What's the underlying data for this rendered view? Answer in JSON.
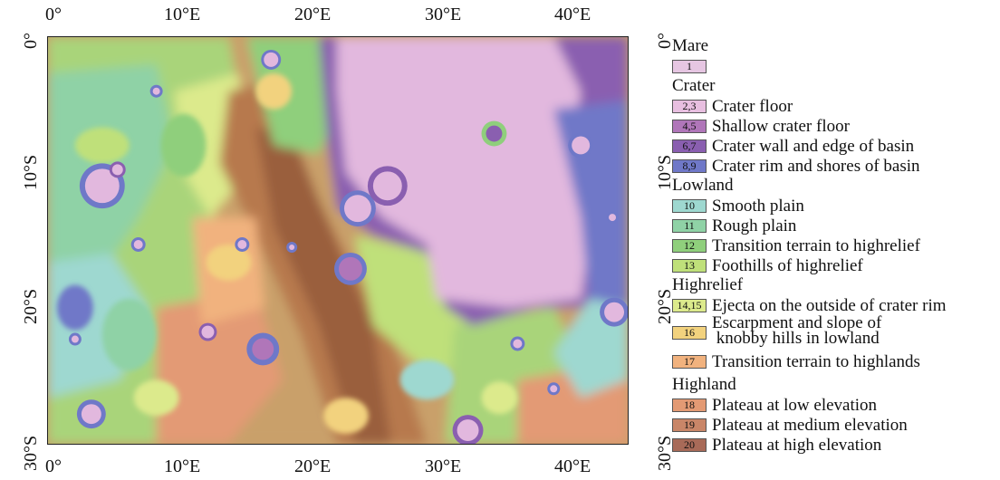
{
  "axes": {
    "top_ticks": [
      "0°",
      "10°E",
      "20°E",
      "30°E",
      "40°E"
    ],
    "bottom_ticks": [
      "0°",
      "10°E",
      "20°E",
      "30°E",
      "40°E"
    ],
    "left_ticks": [
      "0°",
      "10°S",
      "20°S",
      "30°S"
    ],
    "right_ticks": [
      "0°",
      "10°S",
      "20°S",
      "30°S"
    ],
    "lon_range": [
      0,
      44
    ],
    "lat_range": [
      0,
      -30
    ]
  },
  "legend": {
    "groups": [
      {
        "title": "Mare",
        "items": [
          {
            "code": "1",
            "label": "",
            "color": "#e6c6e2"
          }
        ]
      },
      {
        "title": "Crater",
        "items": [
          {
            "code": "2,3",
            "label": "Crater floor",
            "color": "#e8bfe0"
          },
          {
            "code": "4,5",
            "label": "Shallow crater floor",
            "color": "#b076b9"
          },
          {
            "code": "6,7",
            "label": "Crater wall and edge of basin",
            "color": "#8a5fb0"
          },
          {
            "code": "8,9",
            "label": "Crater rim and shores of basin",
            "color": "#6f78c8"
          }
        ]
      },
      {
        "title": "Lowland",
        "items": [
          {
            "code": "10",
            "label": "Smooth plain",
            "color": "#9ed8d0"
          },
          {
            "code": "11",
            "label": "Rough plain",
            "color": "#8fd2a6"
          },
          {
            "code": "12",
            "label": "Transition terrain to highrelief",
            "color": "#8fcf7c"
          },
          {
            "code": "13",
            "label": "Foothills of highrelief",
            "color": "#bfe07a"
          }
        ]
      },
      {
        "title": "Highrelief",
        "items": [
          {
            "code": "14,15",
            "label": "Ejecta on the outside of crater rim",
            "color": "#dcea8c"
          },
          {
            "code": "16",
            "label": "Escarpment and slope of\n knobby hills in lowland",
            "color": "#f2d27e"
          },
          {
            "code": "17",
            "label": "Transition terrain to highlands",
            "color": "#f1b27e"
          }
        ]
      },
      {
        "title": "Highland",
        "items": [
          {
            "code": "18",
            "label": "Plateau at low elevation",
            "color": "#e39a74"
          },
          {
            "code": "19",
            "label": "Plateau at medium elevation",
            "color": "#c98668"
          },
          {
            "code": "20",
            "label": "Plateau at high elevation",
            "color": "#a86a58"
          }
        ]
      }
    ]
  }
}
